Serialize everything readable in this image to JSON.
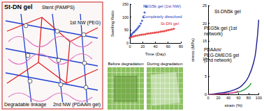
{
  "diagram": {
    "title": "St-DN gel",
    "labels": [
      "Stent (PAMPS)",
      "1st NW (PEG)",
      "Degradable linkage",
      "2nd NW (PDAAm gel)"
    ]
  },
  "photos": {
    "captions": [
      "Before degradation",
      "During degradation"
    ]
  },
  "chart_data": [
    {
      "type": "scatter",
      "x_label": "Time (Day)",
      "y_label": "Swelling Ratio",
      "xlim": [
        0,
        80
      ],
      "xticks": [
        0,
        20,
        40,
        60,
        80
      ],
      "ylim": [
        0,
        150
      ],
      "yticks": [
        0,
        50,
        100,
        150
      ],
      "annotations": [
        "Completely dissolved"
      ],
      "series": [
        {
          "name": "PEG5k gel (1st NW)",
          "color": "#1f3fbf",
          "marker": "circle",
          "x": [
            0,
            1,
            2,
            3,
            5,
            7,
            9,
            11,
            13,
            15,
            17,
            19,
            21,
            23,
            25
          ],
          "values": [
            20,
            27,
            31,
            35,
            40,
            44,
            49,
            54,
            60,
            66,
            75,
            86,
            100,
            118,
            140
          ]
        },
        {
          "name": "St-DN gel",
          "color": "#e02020",
          "marker": "circle",
          "x": [
            0,
            3,
            6,
            9,
            12,
            15,
            18,
            21,
            24,
            27,
            30,
            33,
            36,
            39,
            42,
            45,
            48,
            51,
            54,
            57,
            60,
            63,
            66,
            69
          ],
          "values": [
            20,
            24,
            26,
            28,
            29,
            31,
            32,
            33,
            34,
            36,
            37,
            38,
            39,
            40,
            41,
            42,
            44,
            45,
            46,
            48,
            50,
            51,
            53,
            55
          ]
        }
      ]
    },
    {
      "type": "line",
      "x_label": "strain (%)",
      "y_label": "stress (MPa)",
      "xlim": [
        0,
        100
      ],
      "xticks": [
        0,
        20,
        40,
        60,
        80,
        100
      ],
      "ylim": [
        0,
        25
      ],
      "yticks": [
        0,
        5,
        10,
        15,
        20,
        25
      ],
      "series": [
        {
          "name": "St-DN5k gel",
          "color": "#1a1a8c",
          "x": [
            0,
            20,
            40,
            60,
            70,
            80,
            90,
            95,
            100
          ],
          "values": [
            0,
            0.3,
            0.8,
            1.8,
            3,
            5,
            9,
            13,
            21
          ]
        },
        {
          "name": "PEG5k gel (1st network)",
          "color": "#1f9a3a",
          "x": [
            0,
            20,
            40,
            60,
            70,
            80,
            85
          ],
          "values": [
            0,
            0.1,
            0.3,
            0.7,
            1.2,
            2.2,
            3.2
          ]
        },
        {
          "name": "PDAAm/PEG-DMEOS gel (2nd network)",
          "color": "#e0409a",
          "x": [
            0,
            20,
            40,
            50,
            60
          ],
          "values": [
            0,
            0.1,
            0.3,
            0.5,
            0.9
          ]
        }
      ]
    }
  ]
}
